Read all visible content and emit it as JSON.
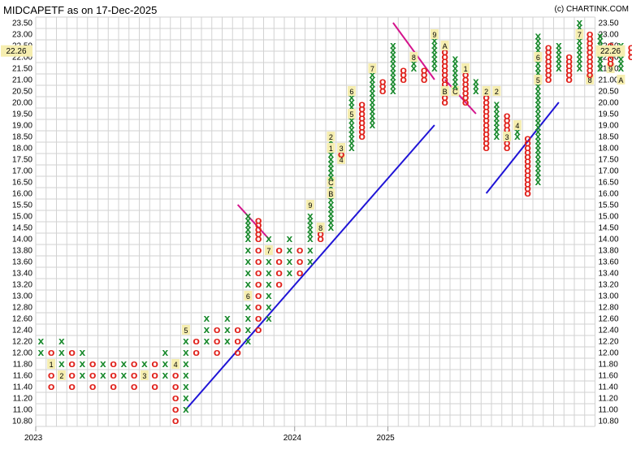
{
  "chart_data": {
    "type": "point-and-figure",
    "title": "MIDCAPETF as on 17-Dec-2025",
    "copyright": "(c) CHARTINK.COM",
    "box_size": 0.2,
    "y_min": 10.8,
    "y_max": 23.5,
    "last_price": 22.26,
    "last_price_label": "22.26",
    "y_ticks": [
      "23.50",
      "23.00",
      "22.50",
      "22.00",
      "21.50",
      "21.00",
      "20.50",
      "20.00",
      "19.50",
      "19.00",
      "18.50",
      "18.00",
      "17.50",
      "17.00",
      "16.50",
      "16.00",
      "15.50",
      "15.00",
      "14.50",
      "14.00",
      "13.80",
      "13.60",
      "13.40",
      "13.20",
      "13.00",
      "12.80",
      "12.60",
      "12.40",
      "12.20",
      "12.00",
      "11.80",
      "11.60",
      "11.40",
      "11.20",
      "11.00",
      "10.80"
    ],
    "x_labels": [
      {
        "text": "2023",
        "col": 0
      },
      {
        "text": "2024",
        "col": 25
      },
      {
        "text": "2025",
        "col": 34
      }
    ],
    "columns": [
      {
        "t": "X",
        "lo": 12.0,
        "hi": 12.2
      },
      {
        "t": "O",
        "lo": 11.4,
        "hi": 12.0,
        "m": [
          {
            "v": 11.8,
            "c": "1"
          }
        ]
      },
      {
        "t": "X",
        "lo": 11.6,
        "hi": 12.2,
        "m": [
          {
            "v": 11.6,
            "c": "2"
          }
        ]
      },
      {
        "t": "O",
        "lo": 11.4,
        "hi": 12.0
      },
      {
        "t": "X",
        "lo": 11.6,
        "hi": 12.0
      },
      {
        "t": "O",
        "lo": 11.4,
        "hi": 11.8
      },
      {
        "t": "X",
        "lo": 11.6,
        "hi": 11.8
      },
      {
        "t": "O",
        "lo": 11.4,
        "hi": 11.8
      },
      {
        "t": "X",
        "lo": 11.6,
        "hi": 11.8
      },
      {
        "t": "O",
        "lo": 11.4,
        "hi": 11.8
      },
      {
        "t": "X",
        "lo": 11.6,
        "hi": 11.8,
        "m": [
          {
            "v": 11.6,
            "c": "3"
          }
        ]
      },
      {
        "t": "O",
        "lo": 11.4,
        "hi": 11.8
      },
      {
        "t": "X",
        "lo": 11.6,
        "hi": 12.0
      },
      {
        "t": "O",
        "lo": 10.8,
        "hi": 11.8,
        "m": [
          {
            "v": 11.8,
            "c": "4"
          }
        ]
      },
      {
        "t": "X",
        "lo": 11.0,
        "hi": 12.4,
        "m": [
          {
            "v": 12.4,
            "c": "5"
          }
        ]
      },
      {
        "t": "O",
        "lo": 12.0,
        "hi": 12.2
      },
      {
        "t": "X",
        "lo": 12.2,
        "hi": 12.6
      },
      {
        "t": "O",
        "lo": 12.0,
        "hi": 12.4
      },
      {
        "t": "X",
        "lo": 12.2,
        "hi": 12.6
      },
      {
        "t": "O",
        "lo": 12.0,
        "hi": 12.4
      },
      {
        "t": "X",
        "lo": 12.2,
        "hi": 15.0,
        "m": [
          {
            "v": 13.0,
            "c": "6"
          }
        ]
      },
      {
        "t": "O",
        "lo": 12.4,
        "hi": 14.8
      },
      {
        "t": "X",
        "lo": 12.6,
        "hi": 14.0,
        "m": [
          {
            "v": 13.8,
            "c": "7"
          }
        ]
      },
      {
        "t": "O",
        "lo": 13.2,
        "hi": 13.8
      },
      {
        "t": "X",
        "lo": 13.4,
        "hi": 14.0
      },
      {
        "t": "O",
        "lo": 13.4,
        "hi": 13.8
      },
      {
        "t": "X",
        "lo": 13.6,
        "hi": 15.0,
        "m": [
          {
            "v": 15.5,
            "c": "9"
          }
        ]
      },
      {
        "t": "O",
        "lo": 14.0,
        "hi": 14.5,
        "m": [
          {
            "v": 14.5,
            "c": "8"
          }
        ]
      },
      {
        "t": "X",
        "lo": 14.5,
        "hi": 18.5,
        "m": [
          {
            "v": 16.5,
            "c": "C"
          },
          {
            "v": 16.0,
            "c": "B"
          },
          {
            "v": 18.5,
            "c": "2"
          },
          {
            "v": 18.0,
            "c": "1"
          }
        ]
      },
      {
        "t": "O",
        "lo": 17.5,
        "hi": 18.0,
        "m": [
          {
            "v": 18.0,
            "c": "3"
          },
          {
            "v": 17.5,
            "c": "4"
          }
        ]
      },
      {
        "t": "X",
        "lo": 18.0,
        "hi": 20.5,
        "m": [
          {
            "v": 20.5,
            "c": "6"
          },
          {
            "v": 19.5,
            "c": "5"
          }
        ]
      },
      {
        "t": "O",
        "lo": 18.5,
        "hi": 20.0
      },
      {
        "t": "X",
        "lo": 19.0,
        "hi": 21.5,
        "m": [
          {
            "v": 21.5,
            "c": "7"
          }
        ]
      },
      {
        "t": "O",
        "lo": 20.5,
        "hi": 21.0
      },
      {
        "t": "X",
        "lo": 20.5,
        "hi": 22.5
      },
      {
        "t": "O",
        "lo": 21.0,
        "hi": 21.5
      },
      {
        "t": "X",
        "lo": 21.5,
        "hi": 22.0,
        "m": [
          {
            "v": 22.0,
            "c": "8"
          }
        ]
      },
      {
        "t": "O",
        "lo": 21.0,
        "hi": 21.5
      },
      {
        "t": "X",
        "lo": 21.5,
        "hi": 23.0,
        "m": [
          {
            "v": 23.0,
            "c": "9"
          }
        ]
      },
      {
        "t": "O",
        "lo": 20.0,
        "hi": 22.5,
        "m": [
          {
            "v": 22.5,
            "c": "A"
          },
          {
            "v": 20.5,
            "c": "B"
          }
        ]
      },
      {
        "t": "X",
        "lo": 20.5,
        "hi": 22.0,
        "m": [
          {
            "v": 20.5,
            "c": "C"
          }
        ]
      },
      {
        "t": "O",
        "lo": 20.0,
        "hi": 21.5,
        "m": [
          {
            "v": 21.5,
            "c": "1"
          }
        ]
      },
      {
        "t": "X",
        "lo": 20.5,
        "hi": 21.0
      },
      {
        "t": "O",
        "lo": 18.0,
        "hi": 20.5,
        "m": [
          {
            "v": 20.5,
            "c": "2"
          }
        ]
      },
      {
        "t": "X",
        "lo": 18.5,
        "hi": 20.0,
        "m": [
          {
            "v": 20.5,
            "c": "2"
          }
        ]
      },
      {
        "t": "O",
        "lo": 18.0,
        "hi": 19.5,
        "m": [
          {
            "v": 18.5,
            "c": "3"
          }
        ]
      },
      {
        "t": "X",
        "lo": 18.5,
        "hi": 19.0,
        "m": [
          {
            "v": 19.0,
            "c": "4"
          }
        ]
      },
      {
        "t": "O",
        "lo": 16.0,
        "hi": 18.5
      },
      {
        "t": "X",
        "lo": 16.5,
        "hi": 23.0,
        "m": [
          {
            "v": 22.0,
            "c": "6"
          },
          {
            "v": 21.0,
            "c": "5"
          }
        ]
      },
      {
        "t": "O",
        "lo": 21.0,
        "hi": 22.5
      },
      {
        "t": "X",
        "lo": 21.5,
        "hi": 22.5
      },
      {
        "t": "O",
        "lo": 21.0,
        "hi": 22.0
      },
      {
        "t": "X",
        "lo": 21.5,
        "hi": 23.5,
        "m": [
          {
            "v": 23.0,
            "c": "7"
          }
        ]
      },
      {
        "t": "O",
        "lo": 21.0,
        "hi": 23.0,
        "m": [
          {
            "v": 21.0,
            "c": "8"
          }
        ]
      },
      {
        "t": "X",
        "lo": 21.5,
        "hi": 23.0
      },
      {
        "t": "O",
        "lo": 21.5,
        "hi": 22.5,
        "m": [
          {
            "v": 21.5,
            "c": "9"
          }
        ]
      },
      {
        "t": "X",
        "lo": 21.5,
        "hi": 22.5,
        "m": [
          {
            "v": 21.0,
            "c": "A"
          }
        ]
      },
      {
        "t": "O",
        "lo": 22.0,
        "hi": 22.5
      },
      {
        "t": "X",
        "lo": 21.5,
        "hi": 23.0,
        "m": [
          {
            "v": 23.0,
            "c": "B"
          }
        ]
      }
    ],
    "trendlines": [
      {
        "kind": "support",
        "color": "#1f14d6",
        "from": {
          "col": 14,
          "v": 11.0
        },
        "to": {
          "col": 38,
          "v": 19.0
        }
      },
      {
        "kind": "support",
        "color": "#1f14d6",
        "from": {
          "col": 43,
          "v": 16.0
        },
        "to": {
          "col": 50,
          "v": 20.0
        }
      },
      {
        "kind": "resistance",
        "color": "#d4148c",
        "from": {
          "col": 19,
          "v": 15.5
        },
        "to": {
          "col": 22,
          "v": 14.0
        }
      },
      {
        "kind": "resistance",
        "color": "#d4148c",
        "from": {
          "col": 34,
          "v": 23.5
        },
        "to": {
          "col": 38,
          "v": 21.0
        }
      },
      {
        "kind": "resistance",
        "color": "#d4148c",
        "from": {
          "col": 39,
          "v": 21.0
        },
        "to": {
          "col": 42,
          "v": 19.5
        }
      }
    ]
  }
}
